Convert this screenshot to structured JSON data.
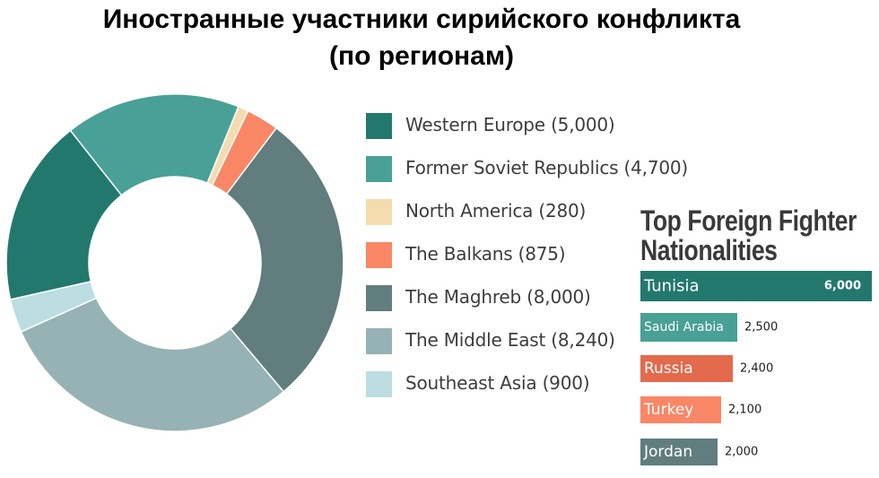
{
  "title": {
    "line1": "Иностранные участники сирийского конфликта",
    "line2": "(по регионам)"
  },
  "chart_data": [
    {
      "type": "pie",
      "title": "",
      "labels": [
        "Western Europe",
        "Former Soviet Republics",
        "North America",
        "The Balkans",
        "The Maghreb",
        "The Middle East",
        "Southeast Asia"
      ],
      "legend_labels": [
        "Western Europe (5,000)",
        "Former Soviet Republics (4,700)",
        "North America (280)",
        "The Balkans (875)",
        "The Maghreb (8,000)",
        "The Middle East (8,240)",
        "Southeast Asia (900)"
      ],
      "values": [
        5000,
        4700,
        280,
        875,
        8000,
        8240,
        900
      ],
      "colors": [
        "#23786e",
        "#48a096",
        "#f4dcae",
        "#f98766",
        "#617d7e",
        "#96b2b4",
        "#bcdde1"
      ],
      "donut": true,
      "legend_position": "right"
    },
    {
      "type": "bar",
      "orientation": "horizontal",
      "title": "Top Foreign Fighter Nationalities",
      "title_lines": [
        "Top Foreign Fighter",
        "Nationalities"
      ],
      "categories": [
        "Tunisia",
        "Saudi Arabia",
        "Russia",
        "Turkey",
        "Jordan"
      ],
      "values": [
        6000,
        2500,
        2400,
        2100,
        2000
      ],
      "value_labels": [
        "6,000",
        "2,500",
        "2,400",
        "2,100",
        "2,000"
      ],
      "colors": [
        "#23786e",
        "#48a096",
        "#e36a4c",
        "#f98766",
        "#617d7e"
      ]
    }
  ]
}
